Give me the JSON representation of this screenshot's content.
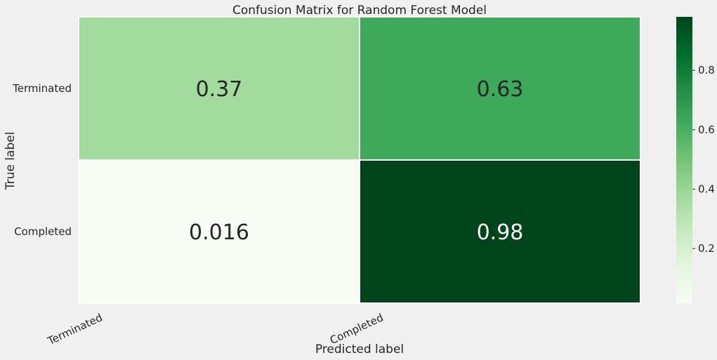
{
  "chart_data": {
    "type": "heatmap",
    "title": "Confusion Matrix for Random Forest Model",
    "xlabel": "Predicted label",
    "ylabel": "True label",
    "x_categories": [
      "Terminated",
      "Completed"
    ],
    "y_categories": [
      "Terminated",
      "Completed"
    ],
    "values": [
      [
        0.37,
        0.63
      ],
      [
        0.016,
        0.98
      ]
    ],
    "annotations": [
      [
        "0.37",
        "0.63"
      ],
      [
        "0.016",
        "0.98"
      ]
    ],
    "colormap": "Greens",
    "colorbar": {
      "range": [
        0.016,
        0.98
      ],
      "ticks": [
        0.2,
        0.4,
        0.6,
        0.8
      ],
      "tick_labels": [
        "0.2",
        "0.4",
        "0.6",
        "0.8"
      ]
    },
    "grid": false
  }
}
